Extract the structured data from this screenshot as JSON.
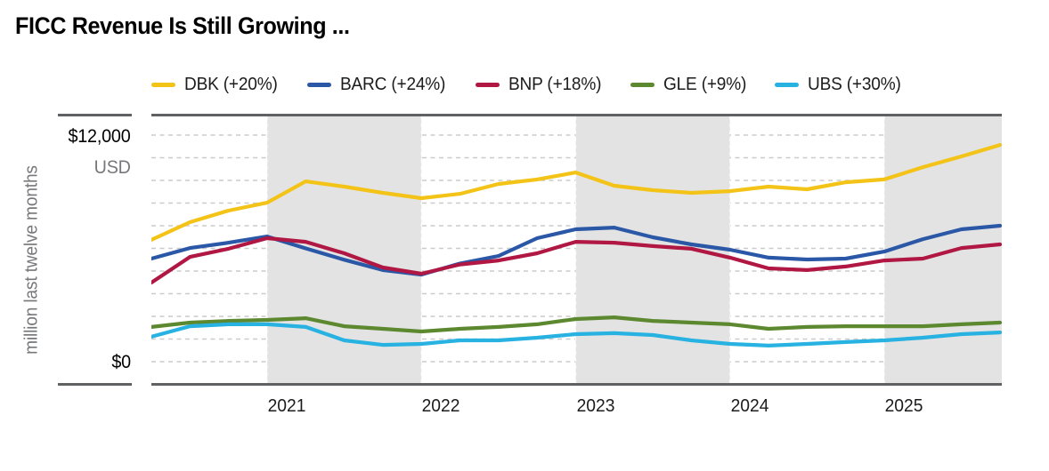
{
  "title": "FICC Revenue Is Still Growing ...",
  "legend": {
    "items": [
      {
        "label": "DBK (+20%)",
        "color": "#F3C317"
      },
      {
        "label": "BARC (+24%)",
        "color": "#2B57A7"
      },
      {
        "label": "BNP (+18%)",
        "color": "#B01743"
      },
      {
        "label": "GLE (+9%)",
        "color": "#5C882F"
      },
      {
        "label": "UBS (+30%)",
        "color": "#27B2E2"
      }
    ]
  },
  "y_axis": {
    "top_tick": "$12,000",
    "unit": "USD",
    "bottom_tick": "$0",
    "side_label": "million last twelve months"
  },
  "x_axis": {
    "year_labels": [
      "2021",
      "2022",
      "2023",
      "2024",
      "2025"
    ]
  },
  "chart_data": {
    "type": "line",
    "title": "FICC Revenue Is Still Growing ...",
    "ylabel": "million last twelve months",
    "currency": "USD",
    "ylim": [
      0,
      12000
    ],
    "gridline_interval": 1200,
    "grid": "dashed-horizontal",
    "legend_position": "top",
    "shaded_years": [
      "2021",
      "2023",
      "2025"
    ],
    "band_color": "#E3E3E3",
    "x": [
      "2020 Q2",
      "2020 Q3",
      "2020 Q4",
      "2021 Q1",
      "2021 Q2",
      "2021 Q3",
      "2021 Q4",
      "2022 Q1",
      "2022 Q2",
      "2022 Q3",
      "2022 Q4",
      "2023 Q1",
      "2023 Q2",
      "2023 Q3",
      "2023 Q4",
      "2024 Q1",
      "2024 Q2",
      "2024 Q3",
      "2024 Q4",
      "2025 Q1",
      "2025 Q2",
      "2025 Q3",
      "2025 Q4"
    ],
    "series": [
      {
        "name": "DBK",
        "change_label": "+20%",
        "color": "#F3C317",
        "values": [
          6450,
          7390,
          8000,
          8420,
          9550,
          9270,
          8940,
          8660,
          8890,
          9410,
          9650,
          10020,
          9320,
          9080,
          8940,
          9030,
          9270,
          9130,
          9500,
          9650,
          10300,
          10870,
          11480
        ]
      },
      {
        "name": "BARC",
        "change_label": "+24%",
        "color": "#2B57A7",
        "values": [
          5460,
          6020,
          6300,
          6630,
          6000,
          5400,
          4850,
          4610,
          5200,
          5600,
          6540,
          7010,
          7100,
          6590,
          6210,
          5930,
          5510,
          5410,
          5460,
          5830,
          6490,
          7010,
          7200
        ]
      },
      {
        "name": "BNP",
        "change_label": "+18%",
        "color": "#B01743",
        "values": [
          4190,
          5550,
          5980,
          6540,
          6350,
          5740,
          4990,
          4660,
          5150,
          5360,
          5740,
          6350,
          6300,
          6120,
          5980,
          5510,
          4940,
          4850,
          5040,
          5360,
          5460,
          6020,
          6210
        ]
      },
      {
        "name": "GLE",
        "change_label": "+9%",
        "color": "#5C882F",
        "values": [
          1840,
          2070,
          2160,
          2210,
          2300,
          1880,
          1740,
          1600,
          1740,
          1840,
          1980,
          2260,
          2350,
          2160,
          2070,
          1980,
          1740,
          1840,
          1880,
          1880,
          1880,
          1980,
          2070
        ]
      },
      {
        "name": "UBS",
        "change_label": "+30%",
        "color": "#27B2E2",
        "values": [
          1320,
          1880,
          1980,
          1980,
          1840,
          1130,
          890,
          940,
          1130,
          1130,
          1270,
          1460,
          1510,
          1410,
          1130,
          940,
          850,
          940,
          1040,
          1130,
          1270,
          1460,
          1550
        ]
      }
    ]
  }
}
